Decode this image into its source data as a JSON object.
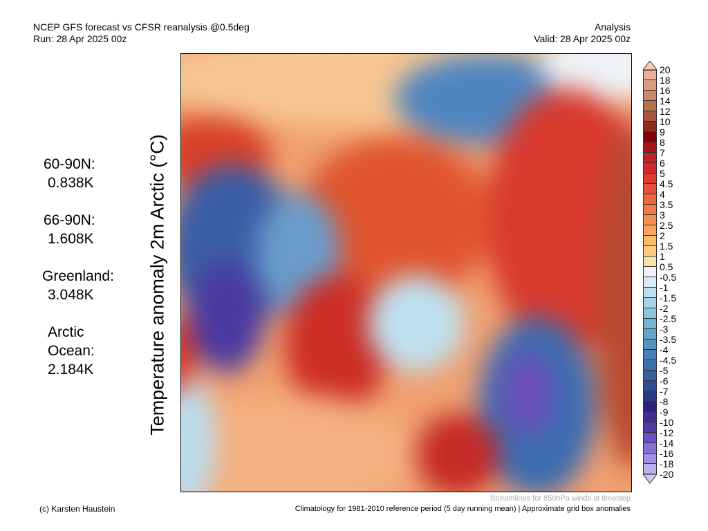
{
  "header": {
    "title": "NCEP GFS forecast vs CFSR reanalysis @0.5deg",
    "run": "Run: 28 Apr 2025 00z",
    "mode": "Analysis",
    "valid": "Valid: 28 Apr 2025 00z"
  },
  "y_label": "Temperature anomaly 2m Arctic (°C)",
  "stats": [
    {
      "label": "60-90N:",
      "value": "0.838K"
    },
    {
      "label": "66-90N:",
      "value": "1.608K"
    },
    {
      "label": "Greenland:",
      "value": "3.048K"
    },
    {
      "label": "Arctic",
      "label2": "Ocean:",
      "value": "2.184K"
    }
  ],
  "colorbar": {
    "labels": [
      "20",
      "18",
      "16",
      "14",
      "12",
      "10",
      "9",
      "8",
      "7",
      "6",
      "5",
      "4.5",
      "4",
      "3.5",
      "3",
      "2.5",
      "2",
      "1.5",
      "1",
      "0.5",
      "-0.5",
      "-1",
      "-1.5",
      "-2",
      "-2.5",
      "-3",
      "-3.5",
      "-4",
      "-4.5",
      "-5",
      "-6",
      "-7",
      "-8",
      "-9",
      "-10",
      "-12",
      "-14",
      "-16",
      "-18",
      "-20"
    ],
    "colors": [
      "#e9b095",
      "#dc9c80",
      "#cd876a",
      "#b9704f",
      "#a4553b",
      "#8a2e1e",
      "#800010",
      "#a8141c",
      "#c02026",
      "#d22a2a",
      "#de3a30",
      "#e8503a",
      "#ef6540",
      "#f47a48",
      "#f88f52",
      "#fba35c",
      "#fdb86a",
      "#fdcc80",
      "#f5e3aa",
      "#f2f2f2",
      "#d6ecf8",
      "#bde0ef",
      "#a5d2e6",
      "#8ec4dc",
      "#7ab4d4",
      "#66a4cc",
      "#5592c2",
      "#4880b8",
      "#3e70ac",
      "#3660a0",
      "#2e4e94",
      "#283c86",
      "#2a2478",
      "#402c92",
      "#5638a8",
      "#6e50c0",
      "#8a70d4",
      "#a490e2",
      "#beb0ee"
    ],
    "top_color": "#f8cdb4",
    "bottom_color": "#d0c8f4"
  },
  "footer": {
    "credit": "(c) Karsten Haustein",
    "streamlines": "Streamlines for 850hPa winds at timestep",
    "climatology": "Climatology for 1981-2010 reference period (5 day running mean) | Approximate grid box anomalies"
  }
}
